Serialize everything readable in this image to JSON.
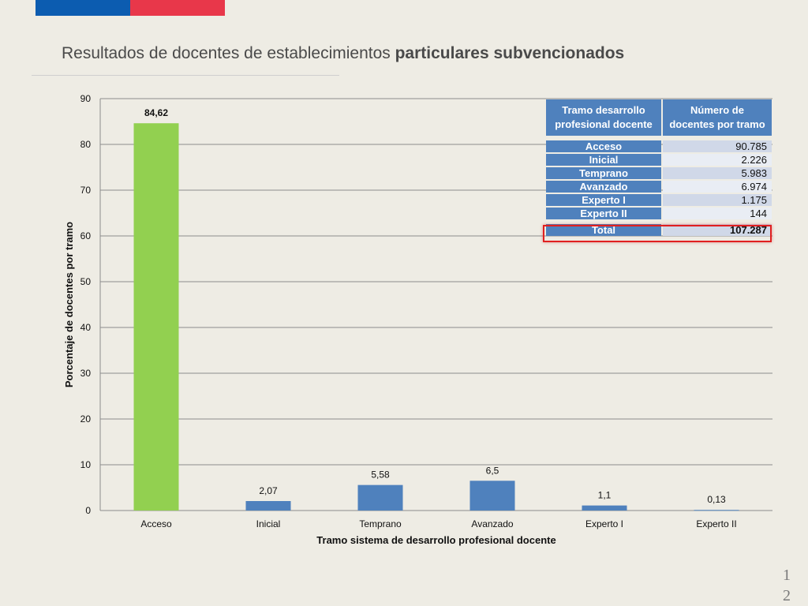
{
  "header": {
    "title_regular": "Resultados de docentes de establecimientos ",
    "title_bold": "particulares subvencionados",
    "flag_colors": [
      "#0c5cb0",
      "#e8374a"
    ]
  },
  "chart_data": {
    "type": "bar",
    "categories": [
      "Acceso",
      "Inicial",
      "Temprano",
      "Avanzado",
      "Experto I",
      "Experto II"
    ],
    "values": [
      84.62,
      2.07,
      5.58,
      6.5,
      1.1,
      0.13
    ],
    "data_labels": [
      "84,62",
      "2,07",
      "5,58",
      "6,5",
      "1,1",
      "0,13"
    ],
    "bar_colors": [
      "#92d050",
      "#4f81bd",
      "#4f81bd",
      "#4f81bd",
      "#4f81bd",
      "#4f81bd"
    ],
    "xlabel": "Tramo sistema de desarrollo profesional docente",
    "ylabel": "Porcentaje de docentes por tramo",
    "ylim": [
      0,
      90
    ],
    "yticks": [
      0,
      10,
      20,
      30,
      40,
      50,
      60,
      70,
      80,
      90
    ],
    "grid": true
  },
  "table": {
    "headers": [
      "Tramo desarrollo profesional docente",
      "Número de docentes por tramo"
    ],
    "rows": [
      {
        "label": "Acceso",
        "value": "90.785"
      },
      {
        "label": "Inicial",
        "value": "2.226"
      },
      {
        "label": "Temprano",
        "value": "5.983"
      },
      {
        "label": "Avanzado",
        "value": "6.974"
      },
      {
        "label": "Experto I",
        "value": "1.175"
      },
      {
        "label": "Experto II",
        "value": "144"
      }
    ],
    "total": {
      "label": "Total",
      "value": "107.287"
    },
    "highlight_color": "#e02020"
  },
  "footer": {
    "page_number": "12"
  }
}
